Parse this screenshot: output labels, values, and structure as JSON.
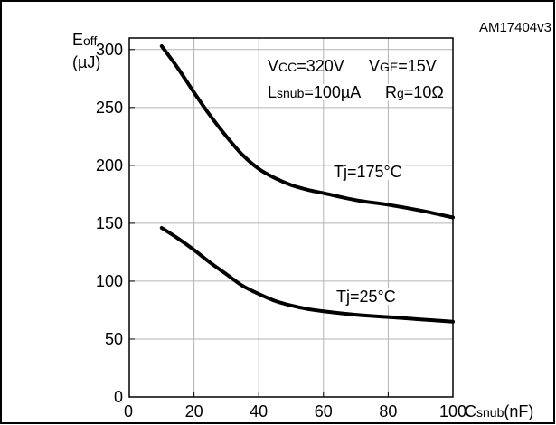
{
  "figure_id": "AM17404v3",
  "chart_data": {
    "type": "line",
    "x_range": [
      0,
      100
    ],
    "y_range": [
      0,
      310
    ],
    "x_ticks": [
      0,
      20,
      40,
      60,
      80,
      100
    ],
    "y_ticks": [
      0,
      50,
      100,
      150,
      200,
      250,
      300
    ],
    "x_tick_labels": [
      "0",
      "20",
      "40",
      "60",
      "80",
      "100"
    ],
    "y_tick_labels": [
      "0",
      "50",
      "100",
      "150",
      "200",
      "250",
      "300"
    ],
    "grid": true,
    "ylabel": {
      "main": "E",
      "sub": "off",
      "unit": "(µJ)"
    },
    "xlabel": {
      "main": "C",
      "sub": "snub",
      "unit": "(nF)"
    },
    "conditions": [
      [
        {
          "main": "V",
          "sub": "CC",
          "value": "=320V"
        },
        {
          "main": "V",
          "sub": "GE",
          "value": "=15V"
        }
      ],
      [
        {
          "main": "L",
          "sub": "snub",
          "value": "=100µA"
        },
        {
          "main": "R",
          "sub": "g",
          "value": "=10Ω"
        }
      ]
    ],
    "series": [
      {
        "name": "Tj=175°C",
        "x": [
          10,
          15,
          20,
          25,
          30,
          35,
          40,
          45,
          50,
          55,
          60,
          70,
          80,
          90,
          100
        ],
        "y": [
          303,
          284,
          263,
          243,
          225,
          209,
          197,
          189,
          183,
          179,
          176,
          170,
          166,
          161,
          155
        ]
      },
      {
        "name": "Tj=25°C",
        "x": [
          10,
          15,
          20,
          25,
          30,
          35,
          40,
          45,
          50,
          55,
          60,
          70,
          80,
          90,
          100
        ],
        "y": [
          146,
          137,
          127,
          116,
          106,
          96,
          89,
          83,
          79,
          76,
          74,
          71,
          69,
          67,
          65
        ]
      }
    ]
  }
}
